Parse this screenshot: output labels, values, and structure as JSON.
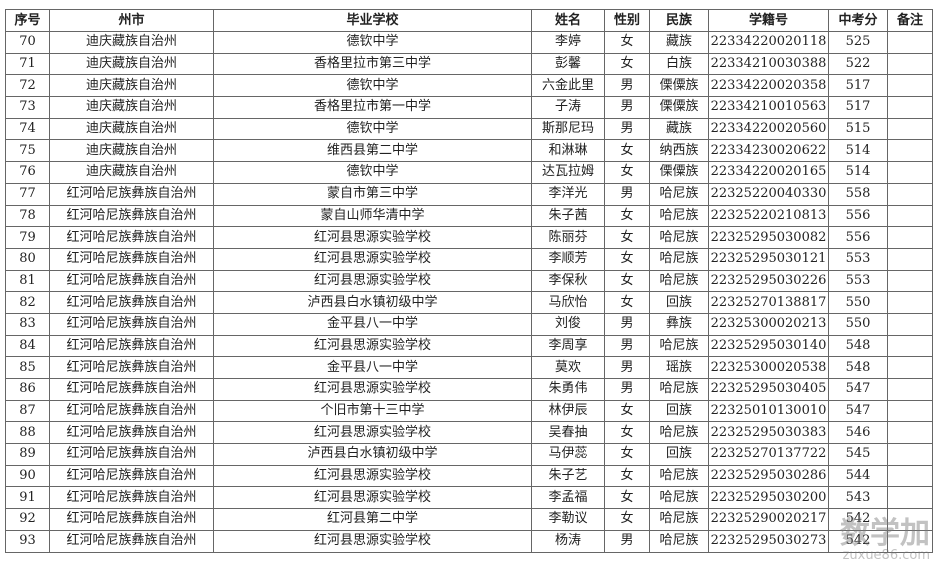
{
  "headers": [
    "序号",
    "州市",
    "毕业学校",
    "姓名",
    "性别",
    "民族",
    "学籍号",
    "中考分",
    "备注"
  ],
  "rows": [
    [
      "70",
      "迪庆藏族自治州",
      "德钦中学",
      "李婷",
      "女",
      "藏族",
      "22334220020118",
      "525",
      ""
    ],
    [
      "71",
      "迪庆藏族自治州",
      "香格里拉市第三中学",
      "彭馨",
      "女",
      "白族",
      "22334210030388",
      "522",
      ""
    ],
    [
      "72",
      "迪庆藏族自治州",
      "德钦中学",
      "六金此里",
      "男",
      "傈僳族",
      "22334220020358",
      "517",
      ""
    ],
    [
      "73",
      "迪庆藏族自治州",
      "香格里拉市第一中学",
      "子涛",
      "男",
      "傈僳族",
      "22334210010563",
      "517",
      ""
    ],
    [
      "74",
      "迪庆藏族自治州",
      "德钦中学",
      "斯那尼玛",
      "男",
      "藏族",
      "22334220020560",
      "515",
      ""
    ],
    [
      "75",
      "迪庆藏族自治州",
      "维西县第二中学",
      "和淋琳",
      "女",
      "纳西族",
      "22334230020622",
      "514",
      ""
    ],
    [
      "76",
      "迪庆藏族自治州",
      "德钦中学",
      "达瓦拉姆",
      "女",
      "傈僳族",
      "22334220020165",
      "514",
      ""
    ],
    [
      "77",
      "红河哈尼族彝族自治州",
      "蒙自市第三中学",
      "李洋光",
      "男",
      "哈尼族",
      "22325220040330",
      "558",
      ""
    ],
    [
      "78",
      "红河哈尼族彝族自治州",
      "蒙自山师华清中学",
      "朱子茜",
      "女",
      "哈尼族",
      "22325220210813",
      "556",
      ""
    ],
    [
      "79",
      "红河哈尼族彝族自治州",
      "红河县思源实验学校",
      "陈丽芬",
      "女",
      "哈尼族",
      "22325295030082",
      "556",
      ""
    ],
    [
      "80",
      "红河哈尼族彝族自治州",
      "红河县思源实验学校",
      "李顺芳",
      "女",
      "哈尼族",
      "22325295030121",
      "553",
      ""
    ],
    [
      "81",
      "红河哈尼族彝族自治州",
      "红河县思源实验学校",
      "李保秋",
      "女",
      "哈尼族",
      "22325295030226",
      "553",
      ""
    ],
    [
      "82",
      "红河哈尼族彝族自治州",
      "泸西县白水镇初级中学",
      "马欣怡",
      "女",
      "回族",
      "22325270138817",
      "550",
      ""
    ],
    [
      "83",
      "红河哈尼族彝族自治州",
      "金平县八一中学",
      "刘俊",
      "男",
      "彝族",
      "22325300020213",
      "550",
      ""
    ],
    [
      "84",
      "红河哈尼族彝族自治州",
      "红河县思源实验学校",
      "李周享",
      "男",
      "哈尼族",
      "22325295030140",
      "548",
      ""
    ],
    [
      "85",
      "红河哈尼族彝族自治州",
      "金平县八一中学",
      "莫欢",
      "男",
      "瑶族",
      "22325300020538",
      "548",
      ""
    ],
    [
      "86",
      "红河哈尼族彝族自治州",
      "红河县思源实验学校",
      "朱勇伟",
      "男",
      "哈尼族",
      "22325295030405",
      "547",
      ""
    ],
    [
      "87",
      "红河哈尼族彝族自治州",
      "个旧市第十三中学",
      "林伊辰",
      "女",
      "回族",
      "22325010130010",
      "547",
      ""
    ],
    [
      "88",
      "红河哈尼族彝族自治州",
      "红河县思源实验学校",
      "吴春抽",
      "女",
      "哈尼族",
      "22325295030383",
      "546",
      ""
    ],
    [
      "89",
      "红河哈尼族彝族自治州",
      "泸西县白水镇初级中学",
      "马伊蕊",
      "女",
      "回族",
      "22325270137722",
      "545",
      ""
    ],
    [
      "90",
      "红河哈尼族彝族自治州",
      "红河县思源实验学校",
      "朱子艺",
      "女",
      "哈尼族",
      "22325295030286",
      "544",
      ""
    ],
    [
      "91",
      "红河哈尼族彝族自治州",
      "红河县思源实验学校",
      "李孟福",
      "女",
      "哈尼族",
      "22325295030200",
      "543",
      ""
    ],
    [
      "92",
      "红河哈尼族彝族自治州",
      "红河县第二中学",
      "李勒议",
      "女",
      "哈尼族",
      "22325290020217",
      "542",
      ""
    ],
    [
      "93",
      "红河哈尼族彝族自治州",
      "红河县思源实验学校",
      "杨涛",
      "男",
      "哈尼族",
      "22325295030273",
      "542",
      ""
    ]
  ],
  "watermark": {
    "text": "数学加",
    "domain": "zuxue86.com"
  }
}
